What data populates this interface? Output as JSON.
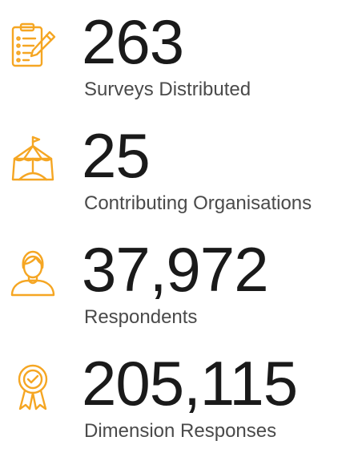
{
  "colors": {
    "accent": "#f5a623",
    "value_text": "#1a1a1a",
    "label_text": "#4a4a4a",
    "background": "#ffffff"
  },
  "stats": [
    {
      "icon": "clipboard-pencil-icon",
      "value": "263",
      "label": "Surveys Distributed"
    },
    {
      "icon": "circus-tent-icon",
      "value": "25",
      "label": "Contributing Organisations"
    },
    {
      "icon": "person-icon",
      "value": "37,972",
      "label": "Respondents"
    },
    {
      "icon": "award-ribbon-icon",
      "value": "205,115",
      "label": "Dimension Responses"
    }
  ]
}
